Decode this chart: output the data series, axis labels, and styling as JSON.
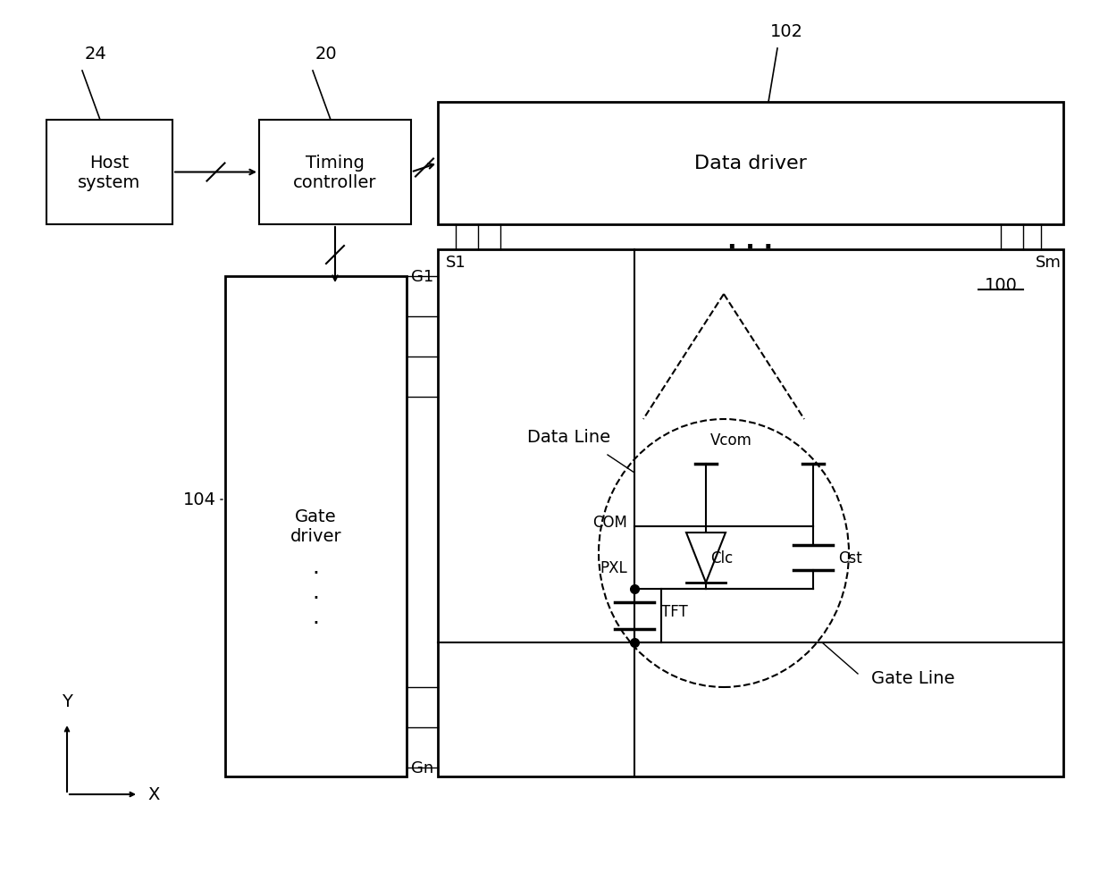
{
  "bg_color": "#ffffff",
  "figsize": [
    12.4,
    9.87
  ],
  "dpi": 100,
  "labels": {
    "host_system": "Host\nsystem",
    "timing_controller": "Timing\ncontroller",
    "data_driver": "Data driver",
    "gate_driver": "Gate\ndriver",
    "label_24": "24",
    "label_20": "20",
    "label_102": "102",
    "label_104": "104",
    "label_100": "100",
    "label_S1": "S1",
    "label_Sm": "Sm",
    "label_G1": "G1",
    "label_Gn": "Gn",
    "label_dots_h": ". . .",
    "label_dots_v": ".",
    "data_line": "Data Line",
    "gate_line": "Gate Line",
    "vcom": "Vcom",
    "com": "COM",
    "pxl": "PXL",
    "clc": "Clc",
    "cst": "Cst",
    "tft": "TFT",
    "label_x": "X",
    "label_y": "Y"
  }
}
